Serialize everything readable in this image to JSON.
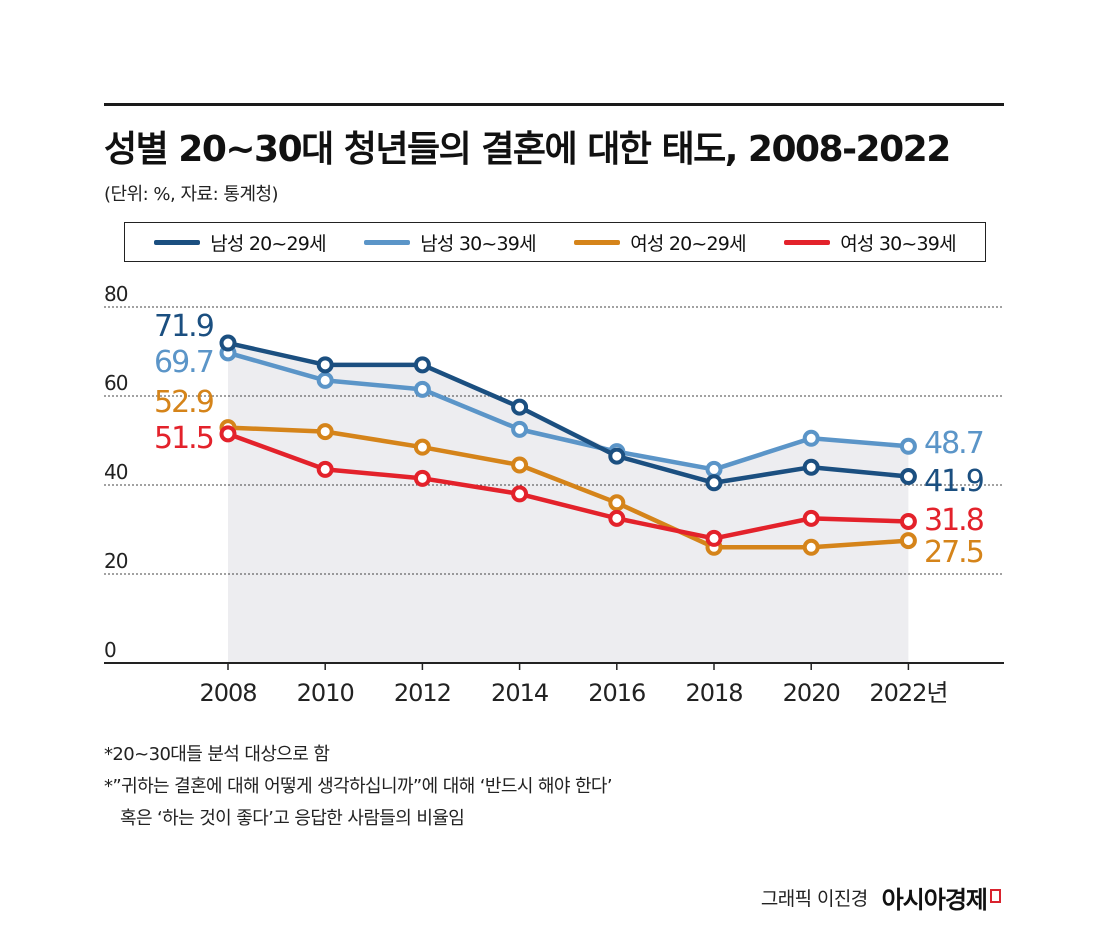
{
  "title": "성별 20~30대 청년들의 결혼에 대한 태도, 2008-2022",
  "subtitle": "(단위: %, 자료: 통계청)",
  "colors": {
    "male_20s": "#1b4f80",
    "male_30s": "#5b95c8",
    "female_20s": "#d5841a",
    "female_30s": "#e3222b",
    "area_fill": "#ededf0"
  },
  "chart_data": {
    "type": "line",
    "title": "성별 20~30대 청년들의 결혼에 대한 태도, 2008-2022",
    "categories": [
      "2008",
      "2010",
      "2012",
      "2014",
      "2016",
      "2018",
      "2020",
      "2022년"
    ],
    "x_tick_labels": [
      "2008",
      "2010",
      "2012",
      "2014",
      "2016",
      "2018",
      "2020",
      "2022년"
    ],
    "y_ticks": [
      "80",
      "60",
      "40",
      "20",
      "0"
    ],
    "ylim": [
      0,
      80
    ],
    "grid": true,
    "legend_position": "top",
    "series": [
      {
        "name": "남성 20~29세",
        "color_key": "male_20s",
        "values": [
          71.9,
          67.0,
          67.0,
          57.5,
          46.5,
          40.5,
          44.0,
          41.9
        ]
      },
      {
        "name": "남성 30~39세",
        "color_key": "male_30s",
        "values": [
          69.7,
          63.5,
          61.5,
          52.5,
          47.5,
          43.5,
          50.5,
          48.7
        ]
      },
      {
        "name": "여성 20~29세",
        "color_key": "female_20s",
        "values": [
          52.9,
          52.0,
          48.5,
          44.5,
          36.0,
          26.0,
          26.0,
          27.5
        ]
      },
      {
        "name": "여성 30~39세",
        "color_key": "female_30s",
        "values": [
          51.5,
          43.5,
          41.5,
          38.0,
          32.5,
          28.0,
          32.5,
          31.8
        ]
      }
    ],
    "annotations": {
      "start": [
        {
          "text": "71.9",
          "color_key": "male_20s"
        },
        {
          "text": "69.7",
          "color_key": "male_30s"
        },
        {
          "text": "52.9",
          "color_key": "female_20s"
        },
        {
          "text": "51.5",
          "color_key": "female_30s"
        }
      ],
      "end": [
        {
          "text": "48.7",
          "color_key": "male_30s"
        },
        {
          "text": "41.9",
          "color_key": "male_20s"
        },
        {
          "text": "31.8",
          "color_key": "female_30s"
        },
        {
          "text": "27.5",
          "color_key": "female_20s"
        }
      ]
    }
  },
  "notes": [
    "*20~30대들 분석 대상으로 함",
    "*”귀하는 결혼에 대해 어떻게 생각하십니까”에 대해 ‘반드시 해야 한다’",
    "혹은 ‘하는 것이 좋다’고 응답한 사람들의 비율임"
  ],
  "credit": {
    "graphic": "그래픽 이진경",
    "brand": "아시아경제"
  }
}
